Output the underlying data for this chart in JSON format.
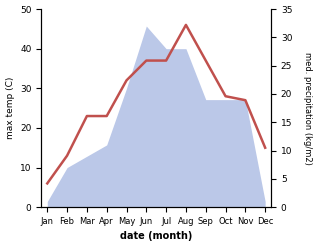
{
  "months": [
    "Jan",
    "Feb",
    "Mar",
    "Apr",
    "May",
    "Jun",
    "Jul",
    "Aug",
    "Sep",
    "Oct",
    "Nov",
    "Dec"
  ],
  "temperature": [
    6,
    13,
    23,
    23,
    32,
    37,
    37,
    46,
    37,
    28,
    27,
    15
  ],
  "precipitation": [
    1,
    7,
    9,
    11,
    21,
    32,
    28,
    28,
    19,
    19,
    19,
    1
  ],
  "temp_color": "#c0504d",
  "precip_fill_color": "#bbc8e8",
  "xlabel": "date (month)",
  "ylabel_left": "max temp (C)",
  "ylabel_right": "med. precipitation (kg/m2)",
  "ylim_left": [
    0,
    50
  ],
  "ylim_right": [
    0,
    35
  ],
  "yticks_left": [
    0,
    10,
    20,
    30,
    40,
    50
  ],
  "yticks_right": [
    0,
    5,
    10,
    15,
    20,
    25,
    30,
    35
  ],
  "background_color": "#ffffff"
}
